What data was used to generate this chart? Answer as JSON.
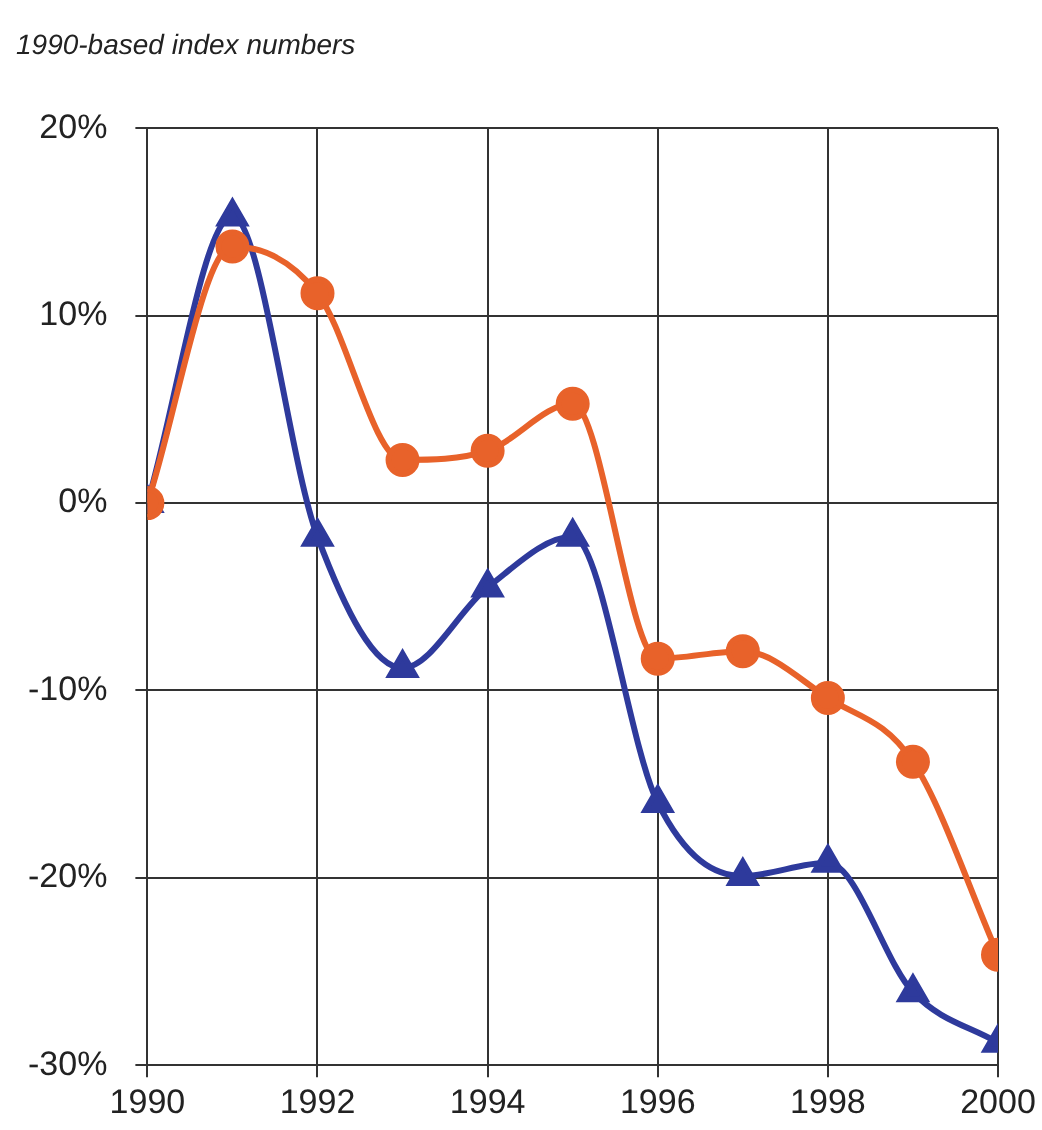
{
  "chart_data": {
    "type": "line",
    "title": "1990-based index numbers",
    "x": [
      1990,
      1991,
      1992,
      1993,
      1994,
      1995,
      1996,
      1997,
      1998,
      1999,
      2000
    ],
    "series": [
      {
        "color": "#e8622a",
        "marker": "circle",
        "values": [
          0,
          13.7,
          11.2,
          2.3,
          2.8,
          5.3,
          -8.3,
          -7.9,
          -10.4,
          -13.8,
          -24.1
        ]
      },
      {
        "color": "#2e3a9c",
        "marker": "triangle",
        "values": [
          0,
          15.3,
          -1.8,
          -8.8,
          -4.5,
          -1.8,
          -16,
          -19.9,
          -19.2,
          -26.1,
          -28.8
        ]
      }
    ],
    "xlim": [
      1990,
      2000
    ],
    "xticks": [
      1990,
      1992,
      1994,
      1996,
      1998,
      2000
    ],
    "ylim": [
      -30,
      20
    ],
    "yticks": [
      {
        "value": -30,
        "label": "-30%"
      },
      {
        "value": -20,
        "label": "-20%"
      },
      {
        "value": -10,
        "label": "-10%"
      },
      {
        "value": 0,
        "label": "0%"
      },
      {
        "value": 10,
        "label": "10%"
      },
      {
        "value": 20,
        "label": "20%"
      }
    ],
    "grid": true,
    "legend": false
  }
}
